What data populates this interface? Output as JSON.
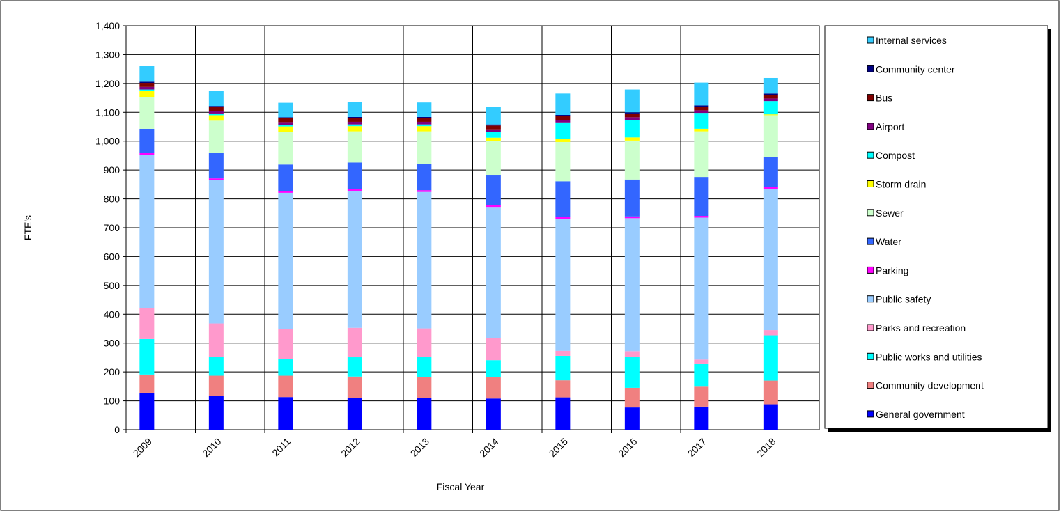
{
  "chart_data": {
    "type": "bar",
    "stacked": true,
    "title": "",
    "xlabel": "Fiscal Year",
    "ylabel": "FTE's",
    "ylim": [
      0,
      1400
    ],
    "y_ticks": [
      "0",
      "100",
      "200",
      "300",
      "400",
      "500",
      "600",
      "700",
      "800",
      "900",
      "1,000",
      "1,100",
      "1,200",
      "1,300",
      "1,400"
    ],
    "grid": true,
    "legend_position": "right",
    "categories": [
      "2009",
      "2010",
      "2011",
      "2012",
      "2013",
      "2014",
      "2015",
      "2016",
      "2017",
      "2018"
    ],
    "series": [
      {
        "name": "General government",
        "color": "#0000FF",
        "values": [
          128,
          117,
          113,
          111,
          111,
          108,
          112,
          77,
          80,
          88
        ]
      },
      {
        "name": "Community development",
        "color": "#F08080",
        "values": [
          63,
          70,
          74,
          73,
          72,
          73,
          59,
          68,
          69,
          82
        ]
      },
      {
        "name": "Public works and utilities",
        "color": "#00FFFF",
        "values": [
          123,
          65,
          59,
          67,
          70,
          60,
          85,
          107,
          78,
          157
        ]
      },
      {
        "name": "Parks and recreation",
        "color": "#FF99CC",
        "values": [
          107,
          116,
          103,
          102,
          98,
          76,
          17,
          20,
          16,
          18
        ]
      },
      {
        "name": "Public safety",
        "color": "#99CCFF",
        "values": [
          532,
          497,
          472,
          475,
          473,
          455,
          458,
          461,
          492,
          490
        ]
      },
      {
        "name": "Parking",
        "color": "#FF00FF",
        "values": [
          6,
          6,
          6,
          6,
          6,
          6,
          6,
          6,
          6,
          6
        ]
      },
      {
        "name": "Water",
        "color": "#3366FF",
        "values": [
          84,
          89,
          92,
          92,
          92,
          103,
          124,
          128,
          135,
          103
        ]
      },
      {
        "name": "Sewer",
        "color": "#CCFFCC",
        "values": [
          110,
          111,
          114,
          108,
          112,
          119,
          136,
          135,
          158,
          146
        ]
      },
      {
        "name": "Storm drain",
        "color": "#FFFF00",
        "values": [
          21,
          19,
          18,
          18,
          18,
          12,
          10,
          11,
          9,
          3
        ]
      },
      {
        "name": "Compost",
        "color": "#00FFFF",
        "values": [
          5,
          6,
          6,
          6,
          6,
          20,
          58,
          61,
          55,
          46
        ]
      },
      {
        "name": "Airport",
        "color": "#800080",
        "values": [
          9,
          9,
          9,
          9,
          9,
          9,
          9,
          9,
          9,
          9
        ]
      },
      {
        "name": "Bus",
        "color": "#800000",
        "values": [
          14,
          13,
          13,
          13,
          13,
          13,
          13,
          13,
          13,
          13
        ]
      },
      {
        "name": "Community center",
        "color": "#000080",
        "values": [
          4,
          4,
          4,
          4,
          4,
          4,
          4,
          4,
          4,
          4
        ]
      },
      {
        "name": "Internal services",
        "color": "#33CCFF",
        "values": [
          54,
          53,
          50,
          51,
          50,
          60,
          74,
          79,
          79,
          54
        ]
      }
    ]
  }
}
